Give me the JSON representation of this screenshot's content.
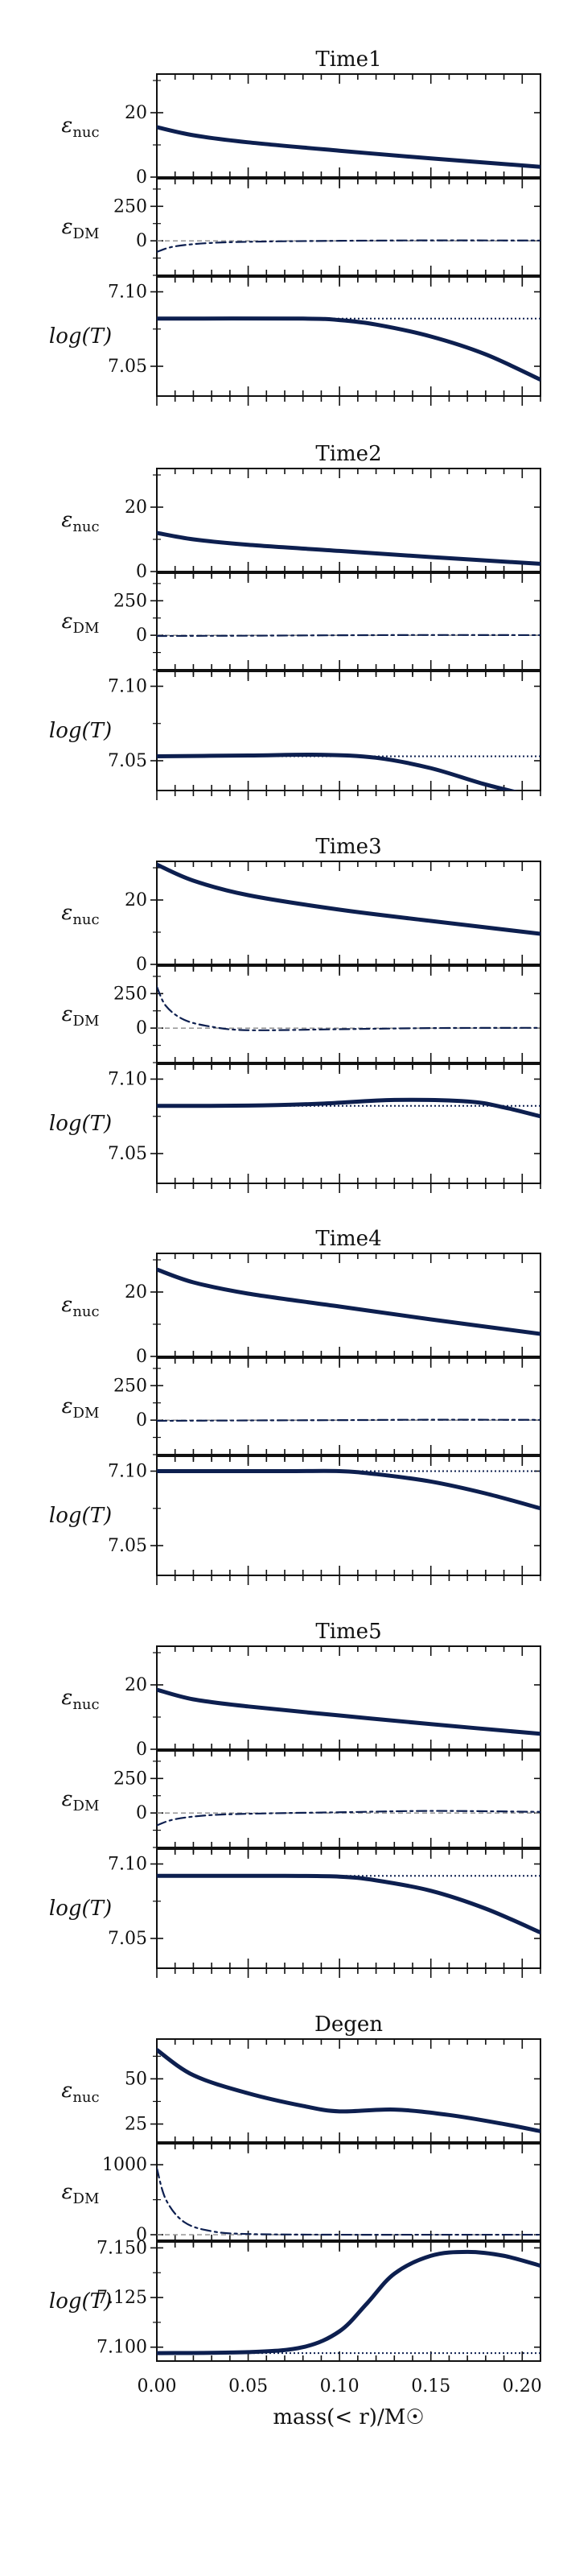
{
  "colors": {
    "line": "#0d1f4f",
    "reference": "#8a8a8a",
    "axis": "#111111"
  },
  "chart_data": {
    "type": "line",
    "xlabel": "mass(< r)/M☉",
    "xlim": [
      0.0,
      0.21
    ],
    "xticks": [
      "0.00",
      "0.05",
      "0.10",
      "0.15",
      "0.20"
    ],
    "row_labels": {
      "nuc": {
        "main": "ε",
        "sub": "nuc"
      },
      "dm": {
        "main": "ε",
        "sub": "DM"
      },
      "logT": {
        "main": "log(T)"
      }
    },
    "groups": [
      {
        "title": "Time1",
        "nuc": {
          "ylim": [
            0,
            32
          ],
          "ticks": [
            "0",
            "20"
          ],
          "x": [
            0,
            0.02,
            0.05,
            0.1,
            0.15,
            0.21
          ],
          "y": [
            15.5,
            13,
            10.8,
            8.2,
            5.8,
            3.2
          ]
        },
        "dm": {
          "ylim": [
            -250,
            450
          ],
          "ticks": [
            "0",
            "250"
          ],
          "ref": 0,
          "x": [
            0,
            0.01,
            0.03,
            0.06,
            0.1,
            0.15,
            0.21
          ],
          "y": [
            -80,
            -40,
            -15,
            -5,
            0,
            3,
            2
          ]
        },
        "logT": {
          "ylim": [
            7.03,
            7.11
          ],
          "ticks": [
            "7.05",
            "7.10"
          ],
          "ref": 7.082,
          "x": [
            0,
            0.08,
            0.1,
            0.12,
            0.15,
            0.18,
            0.21
          ],
          "y": [
            7.082,
            7.082,
            7.081,
            7.078,
            7.07,
            7.058,
            7.041
          ]
        }
      },
      {
        "title": "Time2",
        "nuc": {
          "ylim": [
            0,
            32
          ],
          "ticks": [
            "0",
            "20"
          ],
          "x": [
            0,
            0.02,
            0.05,
            0.1,
            0.15,
            0.21
          ],
          "y": [
            12,
            10,
            8.3,
            6.4,
            4.5,
            2.4
          ]
        },
        "dm": {
          "ylim": [
            -250,
            450
          ],
          "ticks": [
            "0",
            "250"
          ],
          "ref": 0,
          "x": [
            0,
            0.05,
            0.1,
            0.15,
            0.21
          ],
          "y": [
            -5,
            -3,
            0,
            2,
            1
          ]
        },
        "logT": {
          "ylim": [
            7.03,
            7.11
          ],
          "ticks": [
            "7.05",
            "7.10"
          ],
          "ref": 7.053,
          "x": [
            0,
            0.05,
            0.09,
            0.12,
            0.15,
            0.18,
            0.21
          ],
          "y": [
            7.053,
            7.0535,
            7.054,
            7.052,
            7.045,
            7.034,
            7.025
          ]
        }
      },
      {
        "title": "Time3",
        "nuc": {
          "ylim": [
            0,
            32
          ],
          "ticks": [
            "0",
            "20"
          ],
          "x": [
            0,
            0.02,
            0.05,
            0.1,
            0.15,
            0.21
          ],
          "y": [
            31,
            26,
            21.5,
            17,
            13.5,
            9.5
          ]
        },
        "dm": {
          "ylim": [
            -250,
            450
          ],
          "ticks": [
            "0",
            "250"
          ],
          "ref": 0,
          "x": [
            0,
            0.005,
            0.015,
            0.03,
            0.05,
            0.1,
            0.15,
            0.21
          ],
          "y": [
            300,
            160,
            60,
            10,
            -15,
            -8,
            0,
            2
          ]
        },
        "logT": {
          "ylim": [
            7.03,
            7.11
          ],
          "ticks": [
            "7.05",
            "7.10"
          ],
          "ref": 7.082,
          "x": [
            0,
            0.05,
            0.09,
            0.13,
            0.17,
            0.19,
            0.21
          ],
          "y": [
            7.082,
            7.0822,
            7.0835,
            7.086,
            7.085,
            7.081,
            7.075
          ]
        }
      },
      {
        "title": "Time4",
        "nuc": {
          "ylim": [
            0,
            32
          ],
          "ticks": [
            "0",
            "20"
          ],
          "x": [
            0,
            0.02,
            0.05,
            0.1,
            0.15,
            0.21
          ],
          "y": [
            27,
            23,
            19.5,
            15.5,
            11.5,
            7
          ]
        },
        "dm": {
          "ylim": [
            -250,
            450
          ],
          "ticks": [
            "0",
            "250"
          ],
          "ref": 0,
          "x": [
            0,
            0.05,
            0.1,
            0.15,
            0.21
          ],
          "y": [
            -5,
            -2,
            0,
            3,
            2
          ]
        },
        "logT": {
          "ylim": [
            7.03,
            7.11
          ],
          "ticks": [
            "7.05",
            "7.10"
          ],
          "ref": 7.1,
          "x": [
            0,
            0.07,
            0.1,
            0.12,
            0.15,
            0.18,
            0.21
          ],
          "y": [
            7.1,
            7.1,
            7.1,
            7.098,
            7.093,
            7.085,
            7.075
          ]
        }
      },
      {
        "title": "Time5",
        "nuc": {
          "ylim": [
            0,
            32
          ],
          "ticks": [
            "0",
            "20"
          ],
          "x": [
            0,
            0.02,
            0.05,
            0.1,
            0.15,
            0.21
          ],
          "y": [
            18.5,
            15.5,
            13.3,
            10.5,
            7.8,
            4.8
          ]
        },
        "dm": {
          "ylim": [
            -250,
            450
          ],
          "ticks": [
            "0",
            "250"
          ],
          "ref": 0,
          "x": [
            0,
            0.01,
            0.03,
            0.06,
            0.1,
            0.15,
            0.21
          ],
          "y": [
            -90,
            -45,
            -15,
            -3,
            5,
            15,
            8
          ]
        },
        "logT": {
          "ylim": [
            7.03,
            7.11
          ],
          "ticks": [
            "7.05",
            "7.10"
          ],
          "ref": 7.092,
          "x": [
            0,
            0.07,
            0.1,
            0.12,
            0.15,
            0.18,
            0.21
          ],
          "y": [
            7.092,
            7.092,
            7.0915,
            7.089,
            7.082,
            7.07,
            7.054
          ]
        }
      },
      {
        "title": "Degen",
        "nuc": {
          "ylim": [
            15,
            72
          ],
          "ticks": [
            "25",
            "50"
          ],
          "x": [
            0,
            0.02,
            0.05,
            0.08,
            0.1,
            0.13,
            0.16,
            0.19,
            0.21
          ],
          "y": [
            66,
            52,
            42,
            35,
            32,
            33,
            30,
            25,
            21
          ]
        },
        "dm": {
          "ylim": [
            -80,
            1300
          ],
          "ticks": [
            "0",
            "1000"
          ],
          "ref": 0,
          "x": [
            0,
            0.005,
            0.015,
            0.03,
            0.05,
            0.1,
            0.15,
            0.21
          ],
          "y": [
            950,
            500,
            180,
            50,
            10,
            0,
            0,
            0
          ]
        },
        "logT": {
          "ylim": [
            7.093,
            7.153
          ],
          "ticks": [
            "7.100",
            "7.125",
            "7.150"
          ],
          "ref": 7.097,
          "x": [
            0,
            0.05,
            0.08,
            0.1,
            0.115,
            0.13,
            0.15,
            0.17,
            0.19,
            0.21
          ],
          "y": [
            7.097,
            7.0975,
            7.1,
            7.108,
            7.122,
            7.137,
            7.146,
            7.148,
            7.146,
            7.141
          ]
        }
      }
    ]
  }
}
